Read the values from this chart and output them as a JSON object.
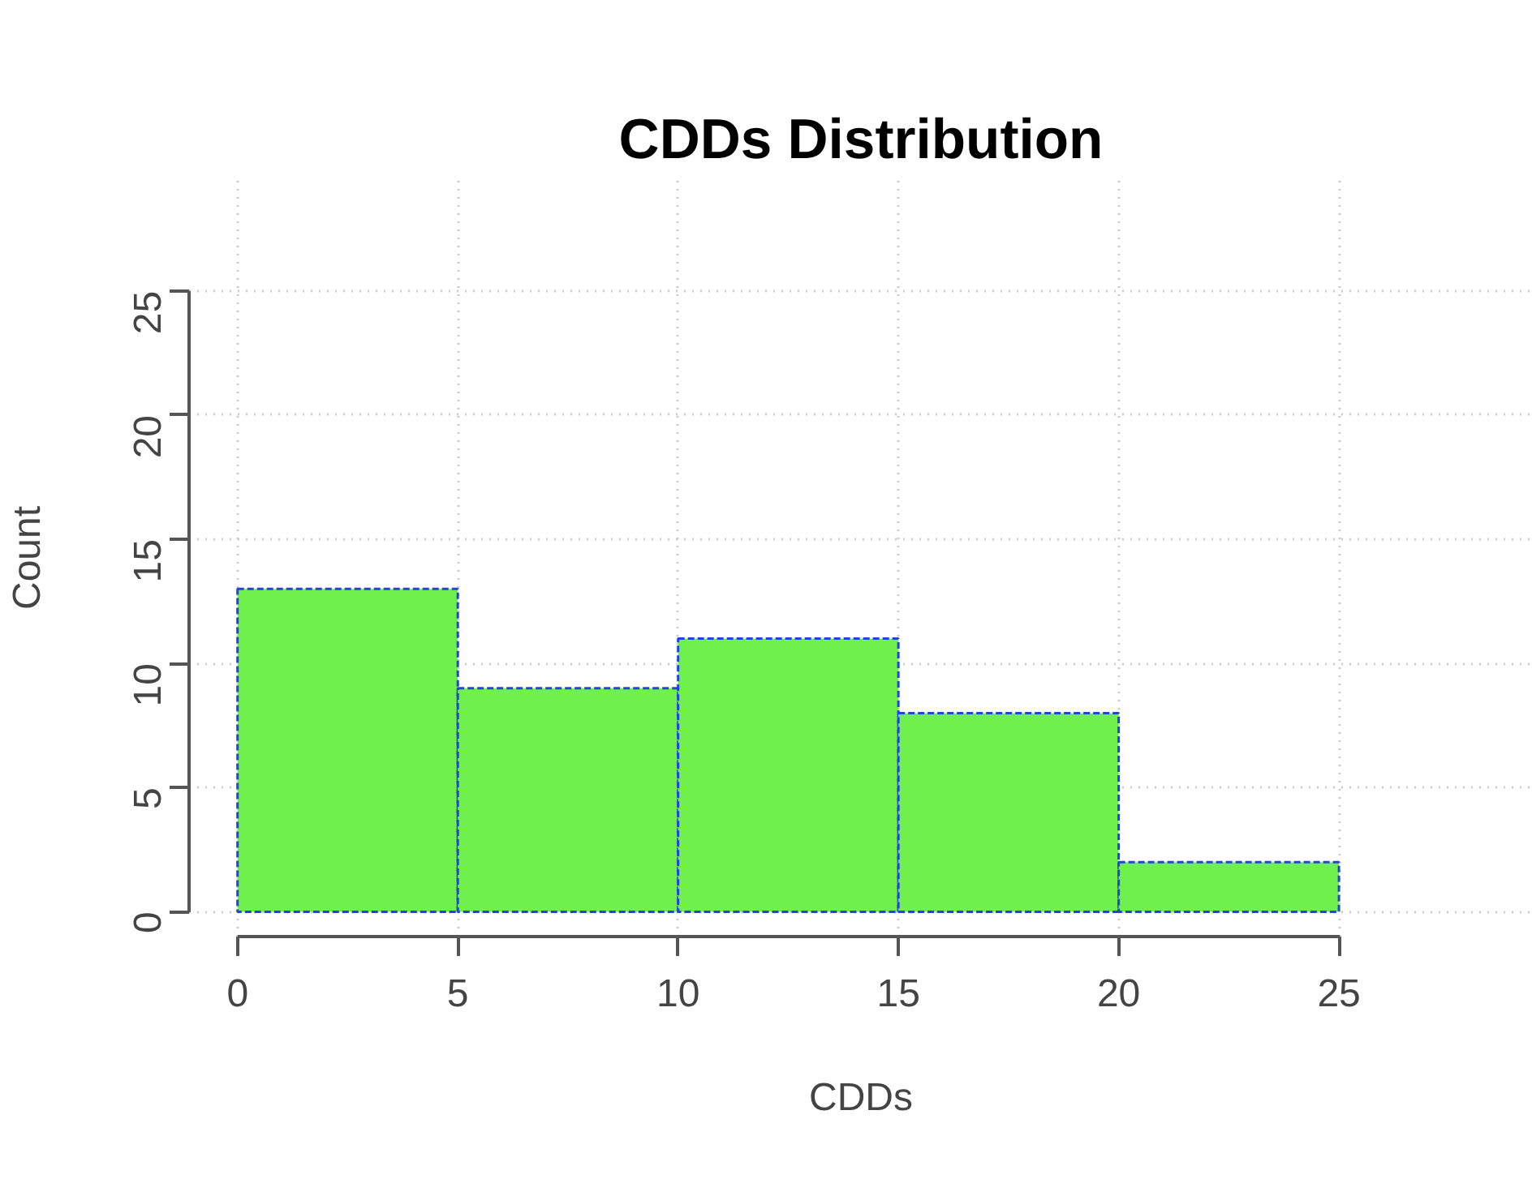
{
  "chart_data": {
    "type": "histogram",
    "title": "CDDs Distribution",
    "xlabel": "CDDs",
    "ylabel": "Count",
    "bins": [
      0,
      5,
      10,
      15,
      20,
      25
    ],
    "values": [
      13,
      9,
      11,
      8,
      2
    ],
    "color": "#70f04c",
    "line_style": "dashed",
    "xlim": [
      -1.1,
      29.4
    ],
    "ylim": [
      -1,
      29.5
    ],
    "xticks": [
      0,
      5,
      10,
      15,
      20,
      25
    ],
    "yticks": [
      0,
      5,
      10,
      15,
      20,
      25
    ],
    "grid": true
  }
}
